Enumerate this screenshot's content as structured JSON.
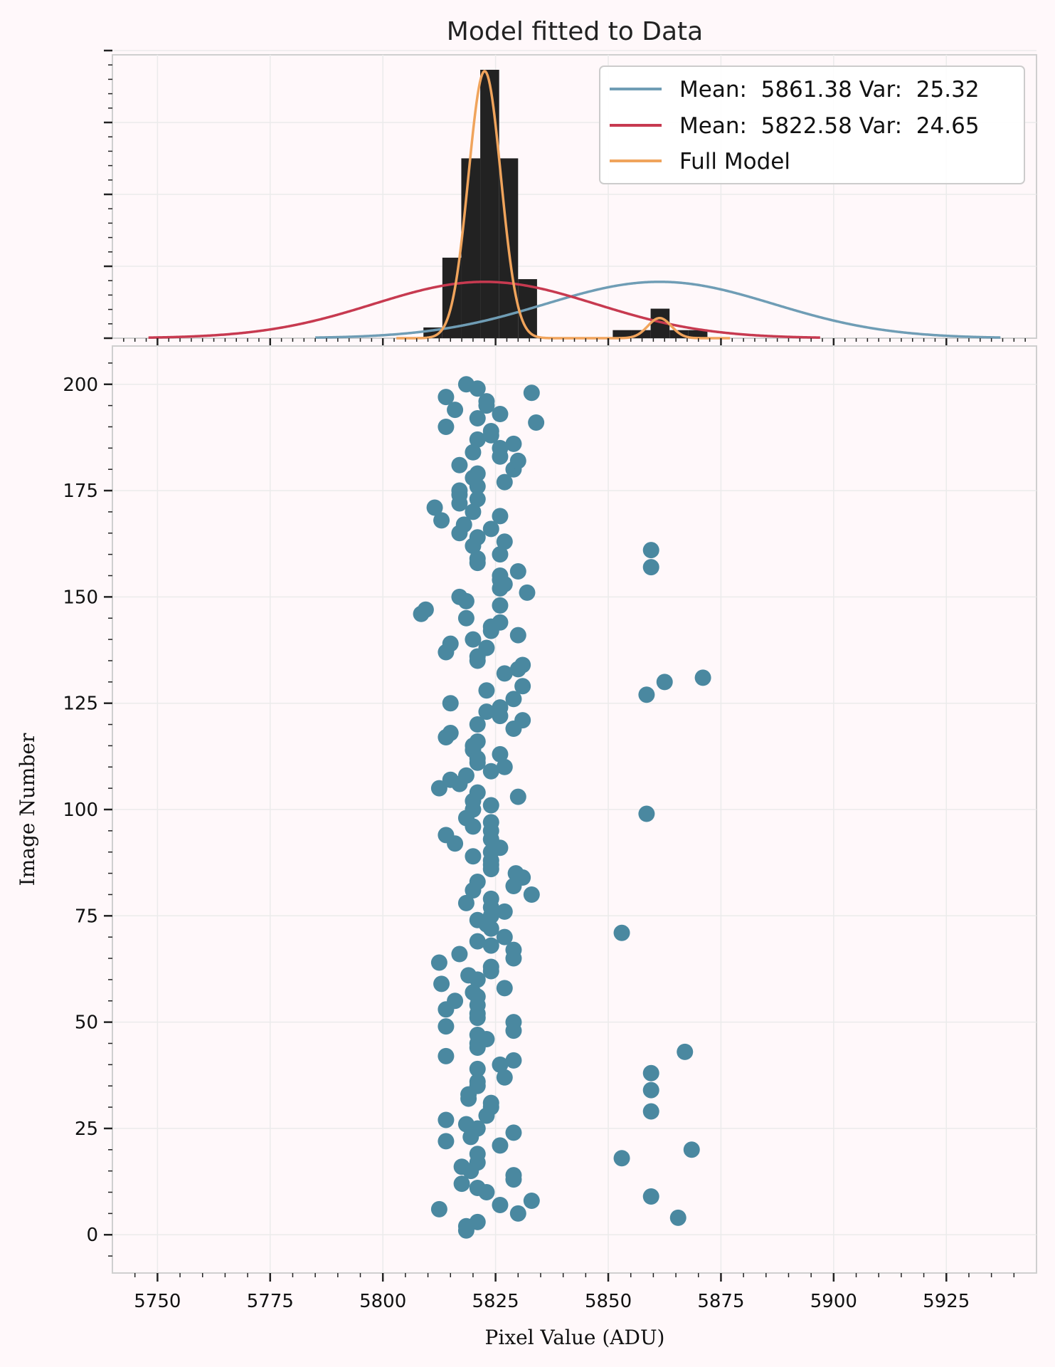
{
  "chart_data": {
    "title": "Model fitted to Data",
    "xlabel": "Pixel Value (ADU)",
    "ylabel": "Image Number",
    "xlim": [
      5740,
      5945
    ],
    "x_ticks": [
      5750,
      5775,
      5800,
      5825,
      5850,
      5875,
      5900,
      5925
    ],
    "top_panel": {
      "type": "histogram_with_models",
      "histogram": {
        "bin_width": 4.2,
        "bins": [
          {
            "x0": 5809.0,
            "x1": 5813.2,
            "h": 0.04
          },
          {
            "x0": 5813.2,
            "x1": 5817.4,
            "h": 0.3
          },
          {
            "x0": 5817.4,
            "x1": 5821.6,
            "h": 0.67
          },
          {
            "x0": 5821.6,
            "x1": 5825.8,
            "h": 1.0
          },
          {
            "x0": 5825.8,
            "x1": 5830.0,
            "h": 0.67
          },
          {
            "x0": 5830.0,
            "x1": 5834.2,
            "h": 0.22
          },
          {
            "x0": 5851.0,
            "x1": 5855.2,
            "h": 0.03
          },
          {
            "x0": 5855.2,
            "x1": 5859.4,
            "h": 0.03
          },
          {
            "x0": 5859.4,
            "x1": 5863.6,
            "h": 0.11
          },
          {
            "x0": 5863.6,
            "x1": 5867.8,
            "h": 0.03
          },
          {
            "x0": 5867.8,
            "x1": 5872.0,
            "h": 0.03
          }
        ]
      },
      "series": [
        {
          "name": "Mean:  5861.38 Var:  25.32",
          "mean": 5861.38,
          "sigma": 25.32,
          "peak": 0.21,
          "color": "#6f9db5",
          "range": [
            5785,
            5937
          ]
        },
        {
          "name": "Mean:  5822.58 Var:  24.65",
          "mean": 5822.58,
          "sigma": 24.65,
          "peak": 0.21,
          "color": "#c73a50",
          "range": [
            5748,
            5897
          ]
        },
        {
          "name": "Full Model",
          "color": "#f0a45c",
          "range": [
            5803,
            5877
          ],
          "components": [
            {
              "mean": 5822.58,
              "sigma": 3.6,
              "peak": 0.995
            },
            {
              "mean": 5861.38,
              "sigma": 2.6,
              "peak": 0.075
            }
          ]
        }
      ]
    },
    "bottom_panel": {
      "type": "scatter",
      "ylim": [
        -9,
        209
      ],
      "y_ticks": [
        0,
        25,
        50,
        75,
        100,
        125,
        150,
        175,
        200
      ],
      "color": "#4a88a0",
      "points": [
        [
          5818.5,
          1
        ],
        [
          5818.5,
          2
        ],
        [
          5821,
          3
        ],
        [
          5865.5,
          4
        ],
        [
          5830,
          5
        ],
        [
          5812.5,
          6
        ],
        [
          5826,
          7
        ],
        [
          5833,
          8
        ],
        [
          5859.5,
          9
        ],
        [
          5823,
          10
        ],
        [
          5821,
          11
        ],
        [
          5817.5,
          12
        ],
        [
          5829,
          13
        ],
        [
          5829,
          14
        ],
        [
          5819.5,
          15
        ],
        [
          5817.5,
          16
        ],
        [
          5821,
          17
        ],
        [
          5853,
          18
        ],
        [
          5821,
          19
        ],
        [
          5868.5,
          20
        ],
        [
          5826,
          21
        ],
        [
          5814,
          22
        ],
        [
          5819.5,
          23
        ],
        [
          5829,
          24
        ],
        [
          5821,
          25
        ],
        [
          5818.5,
          26
        ],
        [
          5814,
          27
        ],
        [
          5823,
          28
        ],
        [
          5859.5,
          29
        ],
        [
          5824,
          30
        ],
        [
          5824,
          31
        ],
        [
          5819,
          32
        ],
        [
          5819,
          33
        ],
        [
          5859.5,
          34
        ],
        [
          5821,
          35
        ],
        [
          5821,
          36
        ],
        [
          5827,
          37
        ],
        [
          5859.5,
          38
        ],
        [
          5821,
          39
        ],
        [
          5826,
          40
        ],
        [
          5829,
          41
        ],
        [
          5814,
          42
        ],
        [
          5867,
          43
        ],
        [
          5821,
          44
        ],
        [
          5821,
          45
        ],
        [
          5823,
          46
        ],
        [
          5821,
          47
        ],
        [
          5829,
          48
        ],
        [
          5814,
          49
        ],
        [
          5829,
          50
        ],
        [
          5821,
          51
        ],
        [
          5821,
          52
        ],
        [
          5814,
          53
        ],
        [
          5821,
          54
        ],
        [
          5816,
          55
        ],
        [
          5821,
          56
        ],
        [
          5820,
          57
        ],
        [
          5827,
          58
        ],
        [
          5813,
          59
        ],
        [
          5821,
          60
        ],
        [
          5819,
          61
        ],
        [
          5824,
          62
        ],
        [
          5824,
          63
        ],
        [
          5812.5,
          64
        ],
        [
          5829,
          65
        ],
        [
          5817,
          66
        ],
        [
          5829,
          67
        ],
        [
          5824,
          68
        ],
        [
          5821,
          69
        ],
        [
          5827,
          70
        ],
        [
          5853,
          71
        ],
        [
          5824,
          72
        ],
        [
          5823,
          73
        ],
        [
          5821,
          74
        ],
        [
          5824,
          75
        ],
        [
          5827,
          76
        ],
        [
          5824,
          77
        ],
        [
          5818.5,
          78
        ],
        [
          5824,
          79
        ],
        [
          5833,
          80
        ],
        [
          5820,
          81
        ],
        [
          5829,
          82
        ],
        [
          5821,
          83
        ],
        [
          5831,
          84
        ],
        [
          5829.5,
          85
        ],
        [
          5824,
          86
        ],
        [
          5824,
          87
        ],
        [
          5824,
          88
        ],
        [
          5820,
          89
        ],
        [
          5824,
          90
        ],
        [
          5826,
          91
        ],
        [
          5816,
          92
        ],
        [
          5824,
          93
        ],
        [
          5814,
          94
        ],
        [
          5824,
          95
        ],
        [
          5820,
          96
        ],
        [
          5824,
          97
        ],
        [
          5818.5,
          98
        ],
        [
          5858.5,
          99
        ],
        [
          5820,
          100
        ],
        [
          5824,
          101
        ],
        [
          5820,
          102
        ],
        [
          5830,
          103
        ],
        [
          5821,
          104
        ],
        [
          5812.5,
          105
        ],
        [
          5817,
          106
        ],
        [
          5815,
          107
        ],
        [
          5818.5,
          108
        ],
        [
          5824,
          109
        ],
        [
          5827,
          110
        ],
        [
          5821,
          111
        ],
        [
          5821,
          112
        ],
        [
          5826,
          113
        ],
        [
          5820,
          114
        ],
        [
          5820,
          115
        ],
        [
          5821,
          116
        ],
        [
          5814,
          117
        ],
        [
          5815,
          118
        ],
        [
          5829,
          119
        ],
        [
          5821,
          120
        ],
        [
          5831,
          121
        ],
        [
          5826,
          122
        ],
        [
          5823,
          123
        ],
        [
          5826,
          124
        ],
        [
          5815,
          125
        ],
        [
          5829,
          126
        ],
        [
          5858.5,
          127
        ],
        [
          5823,
          128
        ],
        [
          5831,
          129
        ],
        [
          5862.5,
          130
        ],
        [
          5871,
          131
        ],
        [
          5827,
          132
        ],
        [
          5830,
          133
        ],
        [
          5831,
          134
        ],
        [
          5821,
          135
        ],
        [
          5821,
          136
        ],
        [
          5814,
          137
        ],
        [
          5823,
          138
        ],
        [
          5815,
          139
        ],
        [
          5820,
          140
        ],
        [
          5830,
          141
        ],
        [
          5824,
          142
        ],
        [
          5824,
          143
        ],
        [
          5826,
          144
        ],
        [
          5818.5,
          145
        ],
        [
          5808.5,
          146
        ],
        [
          5809.5,
          147
        ],
        [
          5826,
          148
        ],
        [
          5818.5,
          149
        ],
        [
          5817,
          150
        ],
        [
          5832,
          151
        ],
        [
          5826,
          152
        ],
        [
          5827,
          153
        ],
        [
          5826,
          154
        ],
        [
          5826,
          155
        ],
        [
          5830,
          156
        ],
        [
          5859.5,
          157
        ],
        [
          5821,
          158
        ],
        [
          5821,
          159
        ],
        [
          5826,
          160
        ],
        [
          5859.5,
          161
        ],
        [
          5820,
          162
        ],
        [
          5827,
          163
        ],
        [
          5821,
          164
        ],
        [
          5817,
          165
        ],
        [
          5824,
          166
        ],
        [
          5818,
          167
        ],
        [
          5813,
          168
        ],
        [
          5826,
          169
        ],
        [
          5820,
          170
        ],
        [
          5811.5,
          171
        ],
        [
          5817,
          172
        ],
        [
          5821,
          173
        ],
        [
          5817,
          174
        ],
        [
          5817,
          175
        ],
        [
          5821,
          176
        ],
        [
          5827,
          177
        ],
        [
          5820,
          178
        ],
        [
          5821,
          179
        ],
        [
          5829,
          180
        ],
        [
          5817,
          181
        ],
        [
          5830,
          182
        ],
        [
          5826,
          183
        ],
        [
          5820,
          184
        ],
        [
          5826,
          185
        ],
        [
          5829,
          186
        ],
        [
          5821,
          187
        ],
        [
          5824,
          188
        ],
        [
          5824,
          189
        ],
        [
          5814,
          190
        ],
        [
          5834,
          191
        ],
        [
          5821,
          192
        ],
        [
          5826,
          193
        ],
        [
          5816,
          194
        ],
        [
          5823,
          195
        ],
        [
          5823,
          196
        ],
        [
          5814,
          197
        ],
        [
          5833,
          198
        ],
        [
          5821,
          199
        ],
        [
          5818.5,
          200
        ]
      ]
    }
  }
}
